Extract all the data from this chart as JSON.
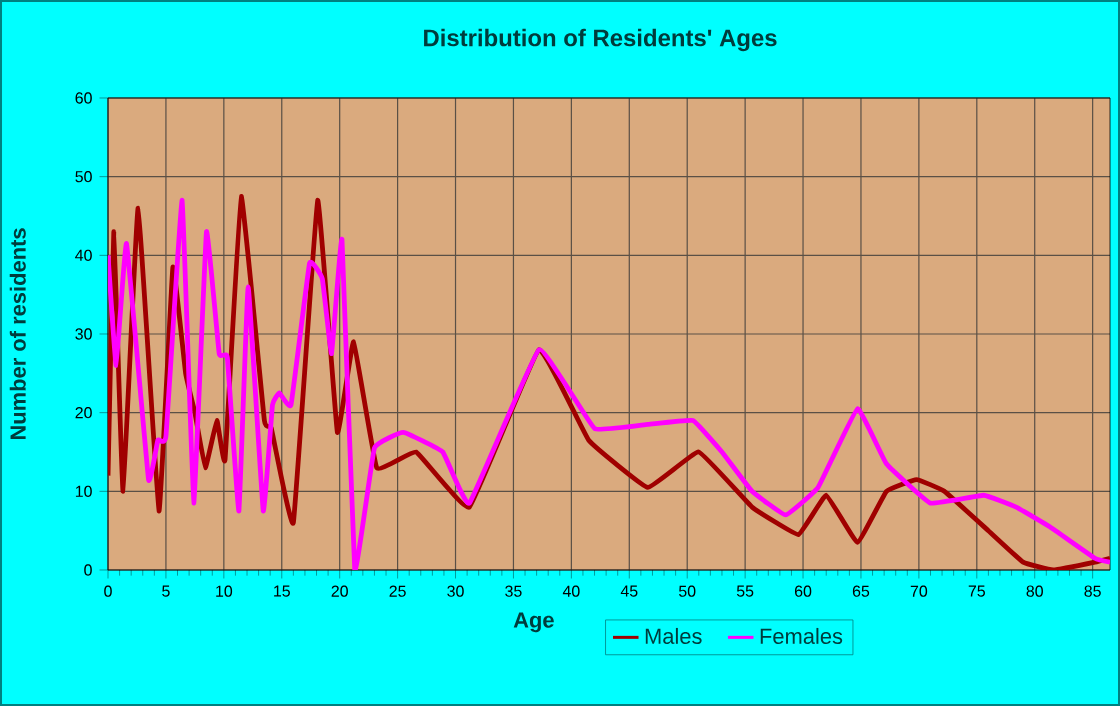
{
  "chart_data": {
    "type": "line",
    "title": "Distribution of Residents' Ages",
    "xlabel": "Age",
    "ylabel": "Number of residents",
    "xlim": [
      0,
      86.5
    ],
    "ylim": [
      0,
      60
    ],
    "xticks": [
      0,
      5,
      10,
      15,
      20,
      25,
      30,
      35,
      40,
      45,
      50,
      55,
      60,
      65,
      70,
      75,
      80,
      85
    ],
    "yticks": [
      0,
      10,
      20,
      30,
      40,
      50,
      60
    ],
    "grid": true,
    "legend": "bottom",
    "series": [
      {
        "name": "Males",
        "color": "#a00000",
        "x": [
          0,
          0.5,
          1.3,
          2.6,
          4.4,
          5.6,
          6.7,
          7.5,
          8.4,
          9.4,
          10.1,
          11.5,
          13.5,
          14.1,
          16,
          18.1,
          19.8,
          21.2,
          23.2,
          26.6,
          31.2,
          37.2,
          41.5,
          46.6,
          51,
          55.6,
          59.6,
          62,
          64.7,
          67.2,
          69.8,
          72.2,
          76,
          79,
          81.6,
          85.2,
          86.5
        ],
        "values": [
          12,
          43,
          10,
          46,
          7.5,
          38.5,
          25,
          20,
          13,
          19,
          14,
          47.5,
          19,
          18,
          6,
          47,
          17.5,
          29,
          13,
          15,
          8,
          28,
          16.5,
          10.5,
          15,
          8,
          4.5,
          9.5,
          3.5,
          10,
          11.5,
          10,
          5,
          1,
          0,
          1,
          1.5
        ]
      },
      {
        "name": "Females",
        "color": "#ff00ff",
        "x": [
          0,
          0.7,
          1.6,
          3.5,
          4.3,
          5,
          6.4,
          7.4,
          8.5,
          9.6,
          10.3,
          11.3,
          12.1,
          13.4,
          14.2,
          14.8,
          15.8,
          17.4,
          18.5,
          19.3,
          20.2,
          21.3,
          23,
          25.5,
          28.9,
          31.2,
          37.2,
          42,
          46.6,
          50.5,
          53,
          55.6,
          58.5,
          61.3,
          64.7,
          67.2,
          71,
          75.6,
          78.4,
          81.3,
          85.2,
          86.5
        ],
        "values": [
          40,
          26,
          41.5,
          11.5,
          16.5,
          17,
          47,
          8.5,
          43,
          27.5,
          27,
          7.5,
          36,
          7.5,
          21,
          22.5,
          21,
          39,
          37,
          27.5,
          42,
          0,
          15.5,
          17.5,
          15,
          8.5,
          28,
          18,
          18.5,
          19,
          15,
          10,
          7,
          10.5,
          20.5,
          13.5,
          8.5,
          9.5,
          8,
          5.5,
          1.5,
          1
        ]
      }
    ]
  }
}
